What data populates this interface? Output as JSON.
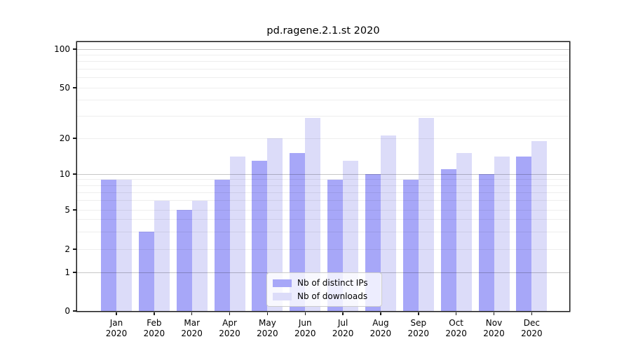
{
  "title": "pd.ragene.2.1.st 2020",
  "chart_data": {
    "type": "bar",
    "title": "pd.ragene.2.1.st 2020",
    "categories": [
      "Jan",
      "Feb",
      "Mar",
      "Apr",
      "May",
      "Jun",
      "Jul",
      "Aug",
      "Sep",
      "Oct",
      "Nov",
      "Dec"
    ],
    "x_tick_year": "2020",
    "series": [
      {
        "name": "Nb of distinct IPs",
        "color": "#a7a7f8",
        "values": [
          9,
          3,
          5,
          9,
          13,
          15,
          9,
          10,
          9,
          11,
          10,
          14
        ]
      },
      {
        "name": "Nb of downloads",
        "color": "#dcdcf9",
        "values": [
          9,
          6,
          6,
          14,
          20,
          29,
          13,
          21,
          29,
          15,
          14,
          19
        ]
      }
    ],
    "y_axis": {
      "scale": "symlog",
      "tick_values": [
        0,
        1,
        2,
        5,
        10,
        20,
        50,
        100
      ],
      "tick_labels": [
        "0",
        "1",
        "2",
        "5",
        "10",
        "20",
        "50",
        "100"
      ],
      "major_gridlines": [
        1,
        10,
        100
      ],
      "minor_gridlines": [
        2,
        3,
        4,
        5,
        6,
        7,
        8,
        9,
        20,
        30,
        40,
        50,
        60,
        70,
        80,
        90
      ],
      "ylim": [
        0,
        110
      ]
    },
    "legend": {
      "position": "lower-center",
      "entries": [
        "Nb of distinct IPs",
        "Nb of downloads"
      ]
    },
    "axis_color": "#1a1a1a",
    "grid_on": true
  }
}
